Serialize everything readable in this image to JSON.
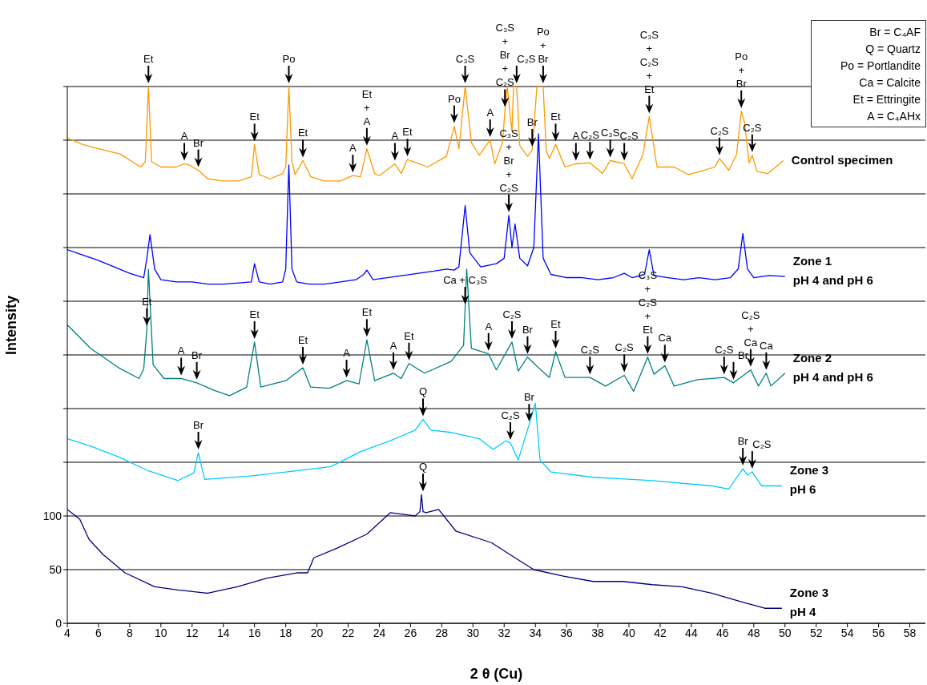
{
  "chart_data": {
    "type": "line",
    "xlabel": "2 θ  (Cu)",
    "ylabel": "Intensity",
    "xlim": [
      4,
      59
    ],
    "xticks": [
      4,
      6,
      8,
      10,
      12,
      14,
      16,
      18,
      20,
      22,
      24,
      26,
      28,
      30,
      32,
      34,
      36,
      38,
      40,
      42,
      44,
      46,
      48,
      50,
      52,
      54,
      56,
      58
    ],
    "ylim": [
      0,
      500
    ],
    "yticks": [
      0,
      50,
      100,
      {
        "value": 150,
        "label": null
      },
      {
        "value": 200,
        "label": null
      },
      {
        "value": 250,
        "label": null
      },
      {
        "value": 300,
        "label": null
      },
      {
        "value": 350,
        "label": null
      },
      {
        "value": 400,
        "label": null
      },
      {
        "value": 450,
        "label": null
      },
      {
        "value": 500,
        "label": null
      }
    ],
    "grid": "y",
    "marker": "none",
    "line_style": "solid",
    "series": [
      {
        "name": "Control specimen",
        "color": "#ff9900",
        "x": [
          4,
          5,
          6,
          7.4,
          8.7,
          9.0,
          9.2,
          9.4,
          10,
          11,
          11.5,
          11.8,
          12.4,
          13,
          14,
          15,
          15.8,
          16.0,
          16.3,
          17,
          17.8,
          18.0,
          18.2,
          18.4,
          18.6,
          19.1,
          19.6,
          20.5,
          21.5,
          22.3,
          22.8,
          23.2,
          23.7,
          24.0,
          25.0,
          25.4,
          25.8,
          27.1,
          28.3,
          28.8,
          29.1,
          29.5,
          29.9,
          30.4,
          31.1,
          31.4,
          31.9,
          32.05,
          32.2,
          32.5,
          32.6,
          32.7,
          32.8,
          33.0,
          33.5,
          33.8,
          34.1,
          34.5,
          34.7,
          34.9,
          35.3,
          35.9,
          36.6,
          37.5,
          38.3,
          38.8,
          39.7,
          40.2,
          40.9,
          41.3,
          41.8,
          42.9,
          43.8,
          44.8,
          45.5,
          45.8,
          46.4,
          46.9,
          47.2,
          47.4,
          47.7,
          47.9,
          48.2,
          48.9,
          49.4,
          49.9
        ],
        "values": [
          452,
          446,
          442,
          437,
          425,
          430,
          500,
          430,
          425,
          425,
          428,
          427,
          422,
          414,
          412,
          412,
          416,
          446,
          418,
          414,
          419,
          425,
          500,
          430,
          418,
          431,
          416,
          412,
          412,
          417,
          416,
          442,
          419,
          417,
          428,
          419,
          432,
          425,
          435,
          463,
          442,
          500,
          448,
          436,
          450,
          428,
          448,
          478,
          500,
          458,
          500,
          500,
          500,
          445,
          435,
          441,
          500,
          500,
          440,
          433,
          446,
          425,
          428,
          429,
          419,
          431,
          428,
          414,
          437,
          472,
          425,
          425,
          418,
          422,
          425,
          433,
          422,
          437,
          477,
          467,
          429,
          436,
          421,
          419,
          425,
          431
        ]
      },
      {
        "name": "Zone 1\npH 4 and pH 6",
        "color": "#0000ff",
        "x": [
          4,
          5,
          6,
          7,
          8,
          8.9,
          9.1,
          9.3,
          9.6,
          10,
          11,
          12,
          13,
          14,
          15,
          15.8,
          16.0,
          16.3,
          17,
          17.8,
          18.0,
          18.2,
          18.4,
          18.7,
          19.5,
          20.5,
          21.5,
          22.5,
          23.0,
          23.2,
          23.6,
          24.5,
          25.5,
          26.5,
          27.5,
          28.3,
          28.8,
          29.1,
          29.5,
          29.8,
          30.5,
          31.5,
          32.0,
          32.3,
          32.5,
          32.7,
          33.0,
          33.5,
          33.9,
          34.2,
          34.5,
          35.0,
          36,
          37,
          38,
          39,
          39.7,
          40.2,
          41.0,
          41.3,
          41.6,
          42.5,
          43.5,
          44.5,
          45.5,
          46.5,
          47.0,
          47.3,
          47.6,
          48.0,
          49,
          50
        ],
        "values": [
          348,
          343,
          338,
          332,
          326,
          322,
          340,
          362,
          330,
          320,
          318,
          318,
          316,
          316,
          317,
          318,
          335,
          318,
          316,
          318,
          330,
          427,
          330,
          318,
          316,
          316,
          318,
          320,
          325,
          329,
          320,
          322,
          324,
          326,
          328,
          330,
          329,
          332,
          389,
          345,
          332,
          335,
          340,
          380,
          350,
          372,
          340,
          333,
          350,
          456,
          340,
          325,
          322,
          322,
          320,
          322,
          326,
          322,
          325,
          348,
          324,
          322,
          320,
          322,
          320,
          322,
          330,
          363,
          330,
          322,
          324,
          323
        ]
      },
      {
        "name": "Zone 2\npH 4 and pH 6",
        "color": "#008080",
        "x": [
          4.0,
          5.5,
          7.3,
          8.6,
          8.9,
          9.1,
          9.2,
          9.5,
          10.2,
          11.3,
          12.3,
          13.4,
          14.4,
          15.5,
          16.0,
          16.4,
          18.0,
          19.1,
          19.6,
          20.8,
          21.9,
          22.7,
          23.2,
          23.7,
          24.9,
          25.4,
          25.9,
          26.9,
          28.6,
          29.4,
          29.5,
          29.6,
          29.9,
          31.0,
          31.5,
          32.5,
          32.9,
          33.5,
          34.2,
          34.9,
          35.3,
          35.9,
          37.5,
          38.5,
          39.7,
          40.3,
          41.2,
          41.6,
          42.3,
          42.9,
          44.4,
          46.1,
          46.7,
          47.8,
          48.3,
          48.8,
          49.1,
          50.0
        ],
        "values": [
          278,
          256,
          238,
          228,
          237,
          274,
          330,
          241,
          228,
          228,
          224,
          217,
          212,
          220,
          262,
          220,
          226,
          238,
          220,
          219,
          226,
          223,
          264,
          226,
          233,
          228,
          242,
          233,
          244,
          259,
          294,
          330,
          256,
          251,
          236,
          262,
          235,
          248,
          238,
          229,
          253,
          229,
          229,
          221,
          231,
          216,
          248,
          232,
          240,
          221,
          227,
          229,
          224,
          236,
          221,
          233,
          221,
          233
        ]
      },
      {
        "name": "Zone 3\npH 6",
        "color": "#00ccff",
        "x": [
          4.0,
          5.5,
          7.3,
          9.2,
          11.1,
          12.1,
          12.4,
          12.8,
          15.6,
          18.7,
          20.9,
          22.8,
          24.7,
          26.3,
          26.8,
          27.3,
          28.5,
          30.4,
          31.3,
          32.1,
          32.4,
          32.9,
          33.3,
          33.6,
          34.0,
          34.3,
          35.0,
          37.7,
          41.5,
          45.3,
          46.4,
          47.3,
          47.6,
          47.9,
          48.5,
          49.8
        ],
        "values": [
          172,
          165,
          155,
          142,
          133,
          140,
          159,
          134,
          137,
          142,
          146,
          160,
          170,
          180,
          190,
          180,
          178,
          172,
          162,
          170,
          168,
          152,
          171,
          185,
          205,
          152,
          141,
          136,
          133,
          128,
          125,
          144,
          138,
          141,
          128,
          128
        ]
      },
      {
        "name": "Zone 3\npH 4",
        "color": "#000080",
        "x": [
          4.0,
          4.8,
          5.4,
          6.3,
          7.7,
          9.6,
          11.1,
          13.0,
          14.9,
          16.8,
          18.7,
          19.4,
          19.8,
          21.3,
          23.2,
          24.7,
          26.3,
          26.6,
          26.7,
          26.8,
          27.0,
          27.8,
          28.9,
          31.2,
          32.7,
          33.9,
          35.8,
          37.7,
          39.6,
          41.5,
          43.4,
          45.3,
          47.2,
          48.7,
          49.8
        ],
        "values": [
          106,
          97,
          78,
          64,
          47,
          34,
          31,
          28,
          34,
          42,
          47,
          47,
          61,
          70,
          83,
          103,
          100,
          104,
          120,
          104,
          103,
          106,
          86,
          75,
          61,
          50,
          44,
          39,
          39,
          36,
          34,
          28,
          20,
          14,
          14
        ]
      }
    ],
    "annotations": [
      "Br = C₄AF",
      "Q = Quartz",
      "Po = Portlandite",
      "Ca = Calcite",
      "Et = Ettringite",
      "A = C₄AHx",
      {
        "text": "Et",
        "x": 9.2,
        "y": 500
      },
      {
        "text": "A",
        "x": 11.5,
        "y": 428
      },
      {
        "text": "Br",
        "x": 12.4,
        "y": 422
      },
      {
        "text": "Et",
        "x": 16.0,
        "y": 446
      },
      {
        "text": "Po",
        "x": 18.2,
        "y": 500
      },
      {
        "text": "Et",
        "x": 19.1,
        "y": 431
      },
      {
        "text": "A",
        "x": 22.3,
        "y": 417
      },
      {
        "text": "Et\n+\nA",
        "x": 23.2,
        "y": 442
      },
      {
        "text": "A",
        "x": 25.0,
        "y": 428
      },
      {
        "text": "Et",
        "x": 25.8,
        "y": 432
      },
      {
        "text": "Po",
        "x": 28.8,
        "y": 463
      },
      {
        "text": "C₃S",
        "x": 29.5,
        "y": 500
      },
      {
        "text": "A",
        "x": 31.1,
        "y": 450
      },
      {
        "text": "C₃S\n+\nBr\n+\nC₂S",
        "x": 32.05,
        "y": 478
      },
      {
        "text": "C₂S",
        "x": 32.8,
        "y": 500
      },
      {
        "text": "Br",
        "x": 33.8,
        "y": 441
      },
      {
        "text": "Po\n+\nBr",
        "x": 34.5,
        "y": 500
      },
      {
        "text": "Et",
        "x": 35.3,
        "y": 446
      },
      {
        "text": "A",
        "x": 36.6,
        "y": 428
      },
      {
        "text": "C₂S",
        "x": 37.5,
        "y": 429
      },
      {
        "text": "C₃S",
        "x": 38.8,
        "y": 431
      },
      {
        "text": "C₂S",
        "x": 39.7,
        "y": 428
      },
      {
        "text": "C₃S\n+\nC₂S\n+\nEt",
        "x": 41.3,
        "y": 472
      },
      {
        "text": "C₂S",
        "x": 45.8,
        "y": 433
      },
      {
        "text": "Po\n+\nBr",
        "x": 47.2,
        "y": 477
      },
      {
        "text": "C₂S",
        "x": 47.9,
        "y": 436
      },
      {
        "text": "C₃S\n+\nBr\n+\nC₂S",
        "x": 32.3,
        "y": 380
      },
      {
        "text": "Ca + C₃S",
        "x": 29.5,
        "y": 294
      },
      {
        "text": "C₃S\n+\nC₂S\n+\nEt",
        "x": 41.2,
        "y": 248
      },
      {
        "text": "C₂S\n+\nCa",
        "x": 47.8,
        "y": 236
      },
      {
        "text": "Et",
        "x": 9.1,
        "y": 274
      },
      {
        "text": "A",
        "x": 11.3,
        "y": 228
      },
      {
        "text": "Br",
        "x": 12.3,
        "y": 224
      },
      {
        "text": "Et",
        "x": 16.0,
        "y": 262
      },
      {
        "text": "Et",
        "x": 19.1,
        "y": 238
      },
      {
        "text": "A",
        "x": 21.9,
        "y": 226
      },
      {
        "text": "Et",
        "x": 23.2,
        "y": 264
      },
      {
        "text": "A",
        "x": 24.9,
        "y": 233
      },
      {
        "text": "Et",
        "x": 25.9,
        "y": 242
      },
      {
        "text": "A",
        "x": 31.0,
        "y": 251
      },
      {
        "text": "C₂S",
        "x": 32.5,
        "y": 262
      },
      {
        "text": "Br",
        "x": 33.5,
        "y": 248
      },
      {
        "text": "Et",
        "x": 35.3,
        "y": 253
      },
      {
        "text": "C₂S",
        "x": 37.5,
        "y": 229
      },
      {
        "text": "C₂S",
        "x": 39.7,
        "y": 231
      },
      {
        "text": "Ca",
        "x": 42.3,
        "y": 240
      },
      {
        "text": "C₂S",
        "x": 46.1,
        "y": 229
      },
      {
        "text": "Br",
        "x": 46.7,
        "y": 224
      },
      {
        "text": "Ca",
        "x": 48.8,
        "y": 233
      },
      {
        "text": "Br",
        "x": 12.4,
        "y": 159
      },
      {
        "text": "Q",
        "x": 26.8,
        "y": 190
      },
      {
        "text": "C₂S",
        "x": 32.4,
        "y": 168
      },
      {
        "text": "Br",
        "x": 33.6,
        "y": 185
      },
      {
        "text": "Br",
        "x": 47.3,
        "y": 144
      },
      {
        "text": "C₂S",
        "x": 47.9,
        "y": 141
      },
      {
        "text": "Q",
        "x": 26.8,
        "y": 120
      }
    ]
  }
}
